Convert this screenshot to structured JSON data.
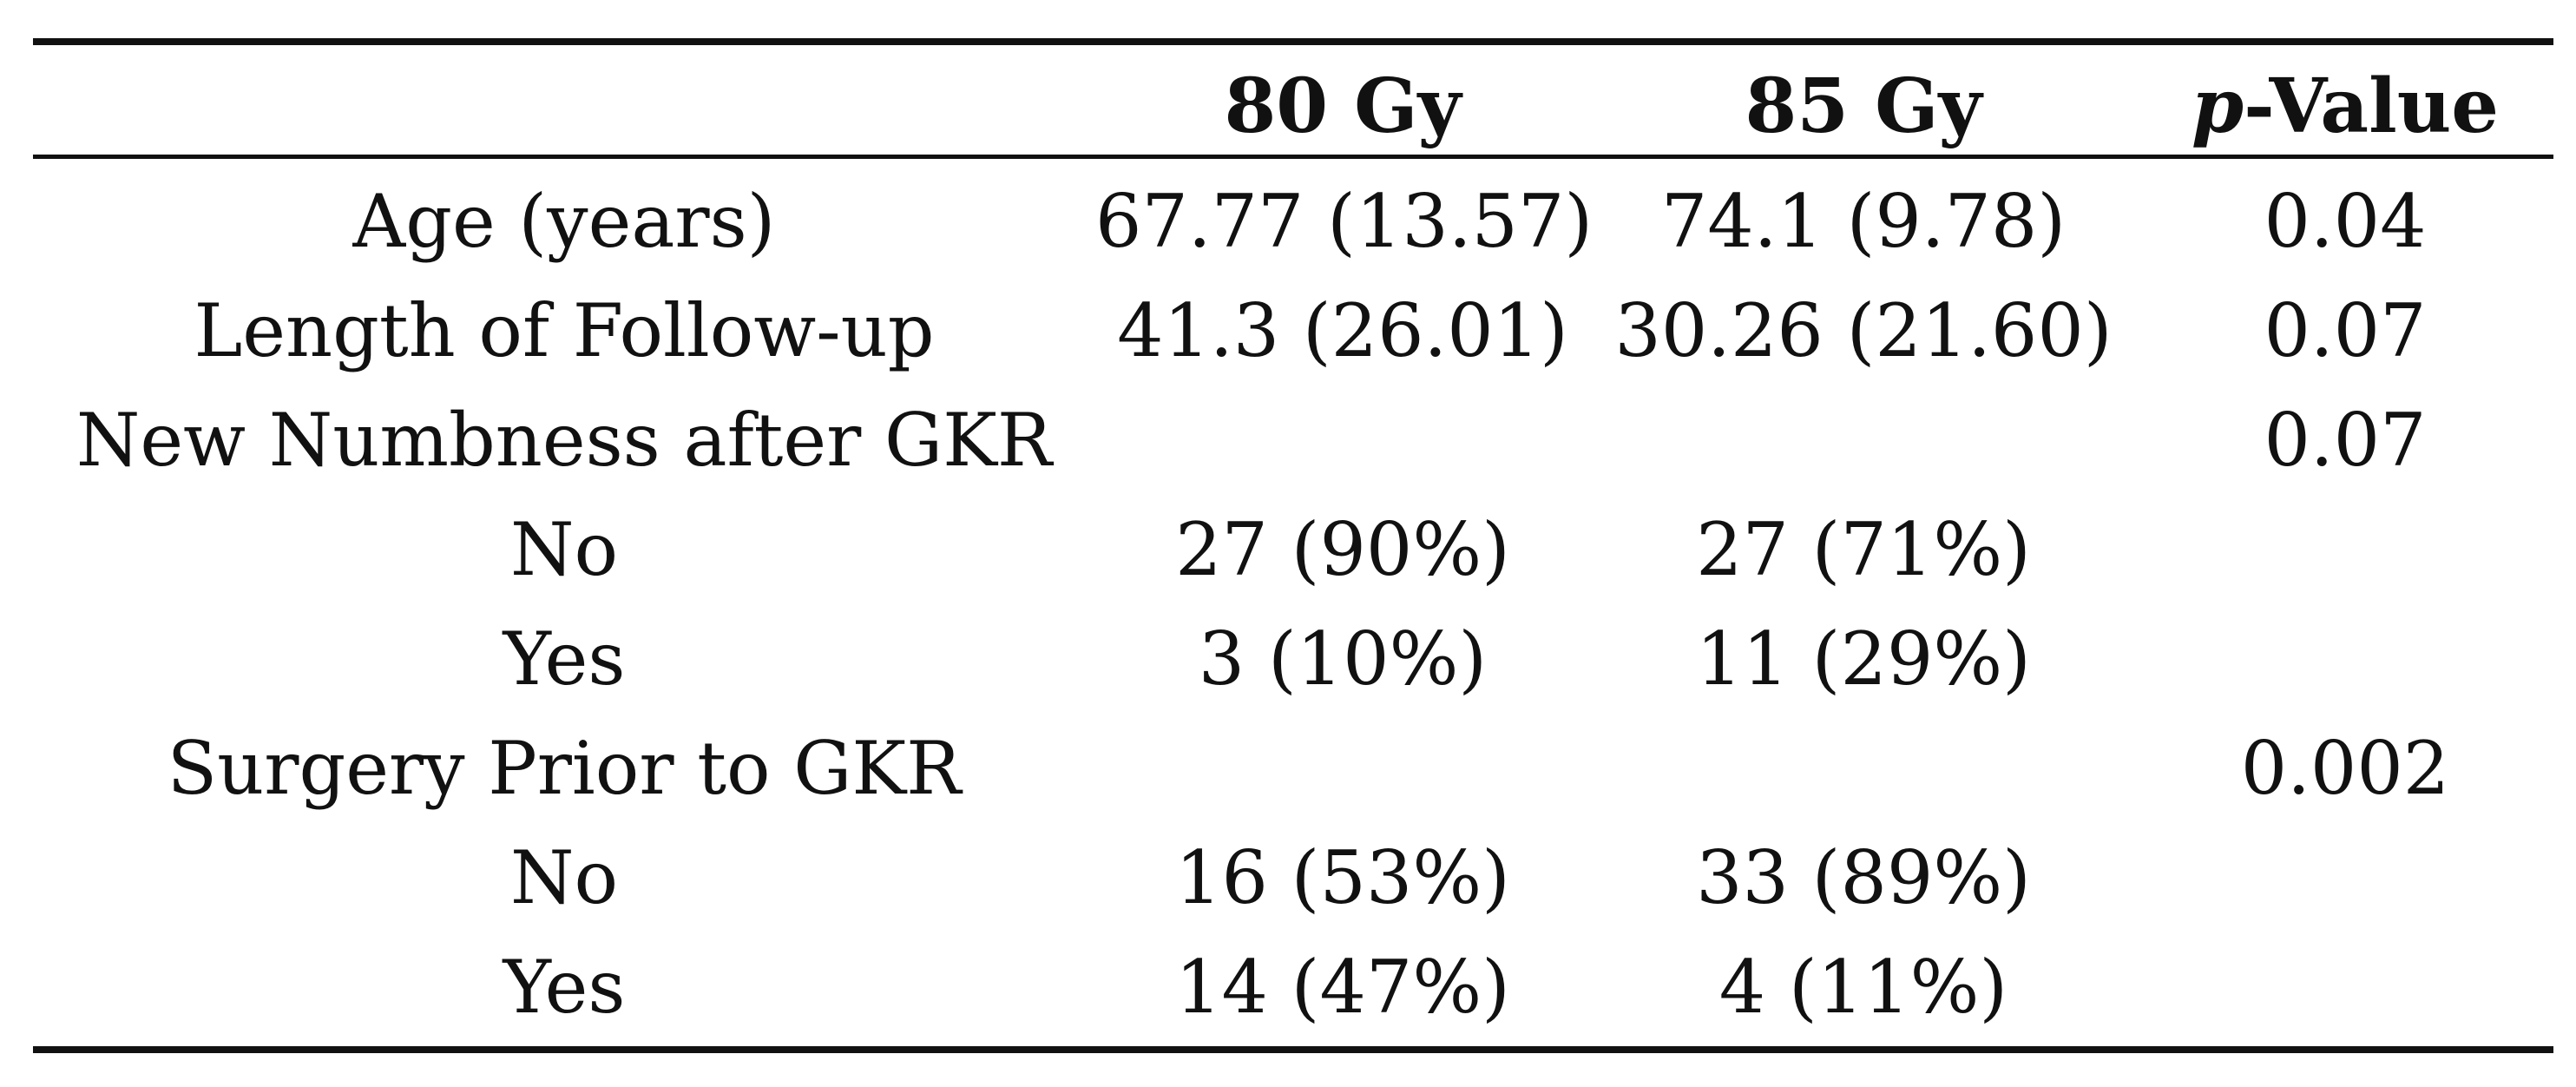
{
  "table": {
    "headers": [
      "",
      "80 Gy",
      "85 Gy",
      {
        "italic": "p",
        "rest": "-Value"
      }
    ],
    "rows": [
      [
        "Age (years)",
        "67.77 (13.57)",
        "74.1 (9.78)",
        "0.04"
      ],
      [
        "Length of Follow-up",
        "41.3 (26.01)",
        "30.26 (21.60)",
        "0.07"
      ],
      [
        "New Numbness after GKR",
        "",
        "",
        "0.07"
      ],
      [
        "No",
        "27 (90%)",
        "27 (71%)",
        ""
      ],
      [
        "Yes",
        "3 (10%)",
        "11 (29%)",
        ""
      ],
      [
        "Surgery Prior to GKR",
        "",
        "",
        "0.002"
      ],
      [
        "No",
        "16 (53%)",
        "33 (89%)",
        ""
      ],
      [
        "Yes",
        "14 (47%)",
        "4 (11%)",
        ""
      ]
    ]
  }
}
